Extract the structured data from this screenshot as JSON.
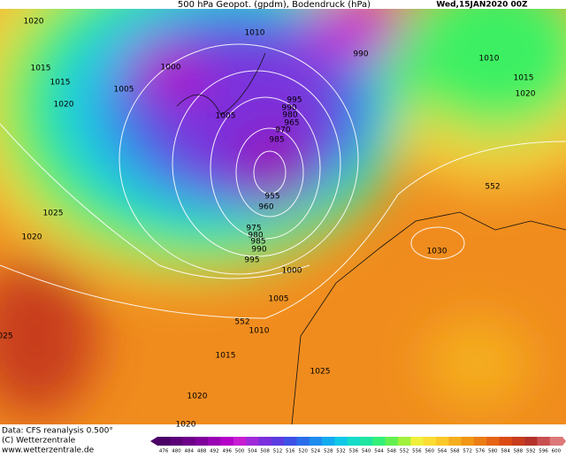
{
  "header": {
    "title": "500 hPa Geopot. (gpdm), Bodendruck (hPa)",
    "date": "Wed,15JAN2020 00Z"
  },
  "isobar_labels": [
    "1020",
    "1010",
    "990",
    "1000",
    "1015",
    "1015",
    "1005",
    "1020",
    "1005",
    "995",
    "990",
    "980",
    "965",
    "970",
    "985",
    "955",
    "960",
    "1025",
    "1020",
    "975",
    "980",
    "985",
    "990",
    "995",
    "1000",
    "1005",
    "552",
    "1010",
    "1015",
    "1025",
    "1020",
    "1020",
    "025",
    "1010",
    "1015",
    "1020",
    "552",
    "1030"
  ],
  "footer": {
    "source": "Data: CFS reanalysis 0.500°",
    "copyright": "(C) Wetterzentrale",
    "url": "www.wetterzentrale.de"
  },
  "colorbar": {
    "ticks": [
      476,
      480,
      484,
      488,
      492,
      496,
      500,
      504,
      508,
      512,
      516,
      520,
      524,
      528,
      532,
      536,
      540,
      544,
      548,
      552,
      556,
      560,
      564,
      568,
      572,
      576,
      580,
      584,
      588,
      592,
      596,
      600
    ],
    "colors": [
      "#4b0066",
      "#5c0078",
      "#6d008a",
      "#80009c",
      "#9a00b4",
      "#b400c8",
      "#c81ed2",
      "#a02ad8",
      "#7a30dc",
      "#5a3ce0",
      "#3c50e6",
      "#2a6eea",
      "#1e8cee",
      "#14aaf0",
      "#10c8e8",
      "#14dcc8",
      "#1ee6a0",
      "#32f078",
      "#64f050",
      "#a0f03c",
      "#f0f03c",
      "#fadc32",
      "#fac828",
      "#f5af1e",
      "#f09614",
      "#eb7d14",
      "#e66414",
      "#dc4b14",
      "#c83c1e",
      "#b43228",
      "#c85050",
      "#dc7878"
    ]
  }
}
